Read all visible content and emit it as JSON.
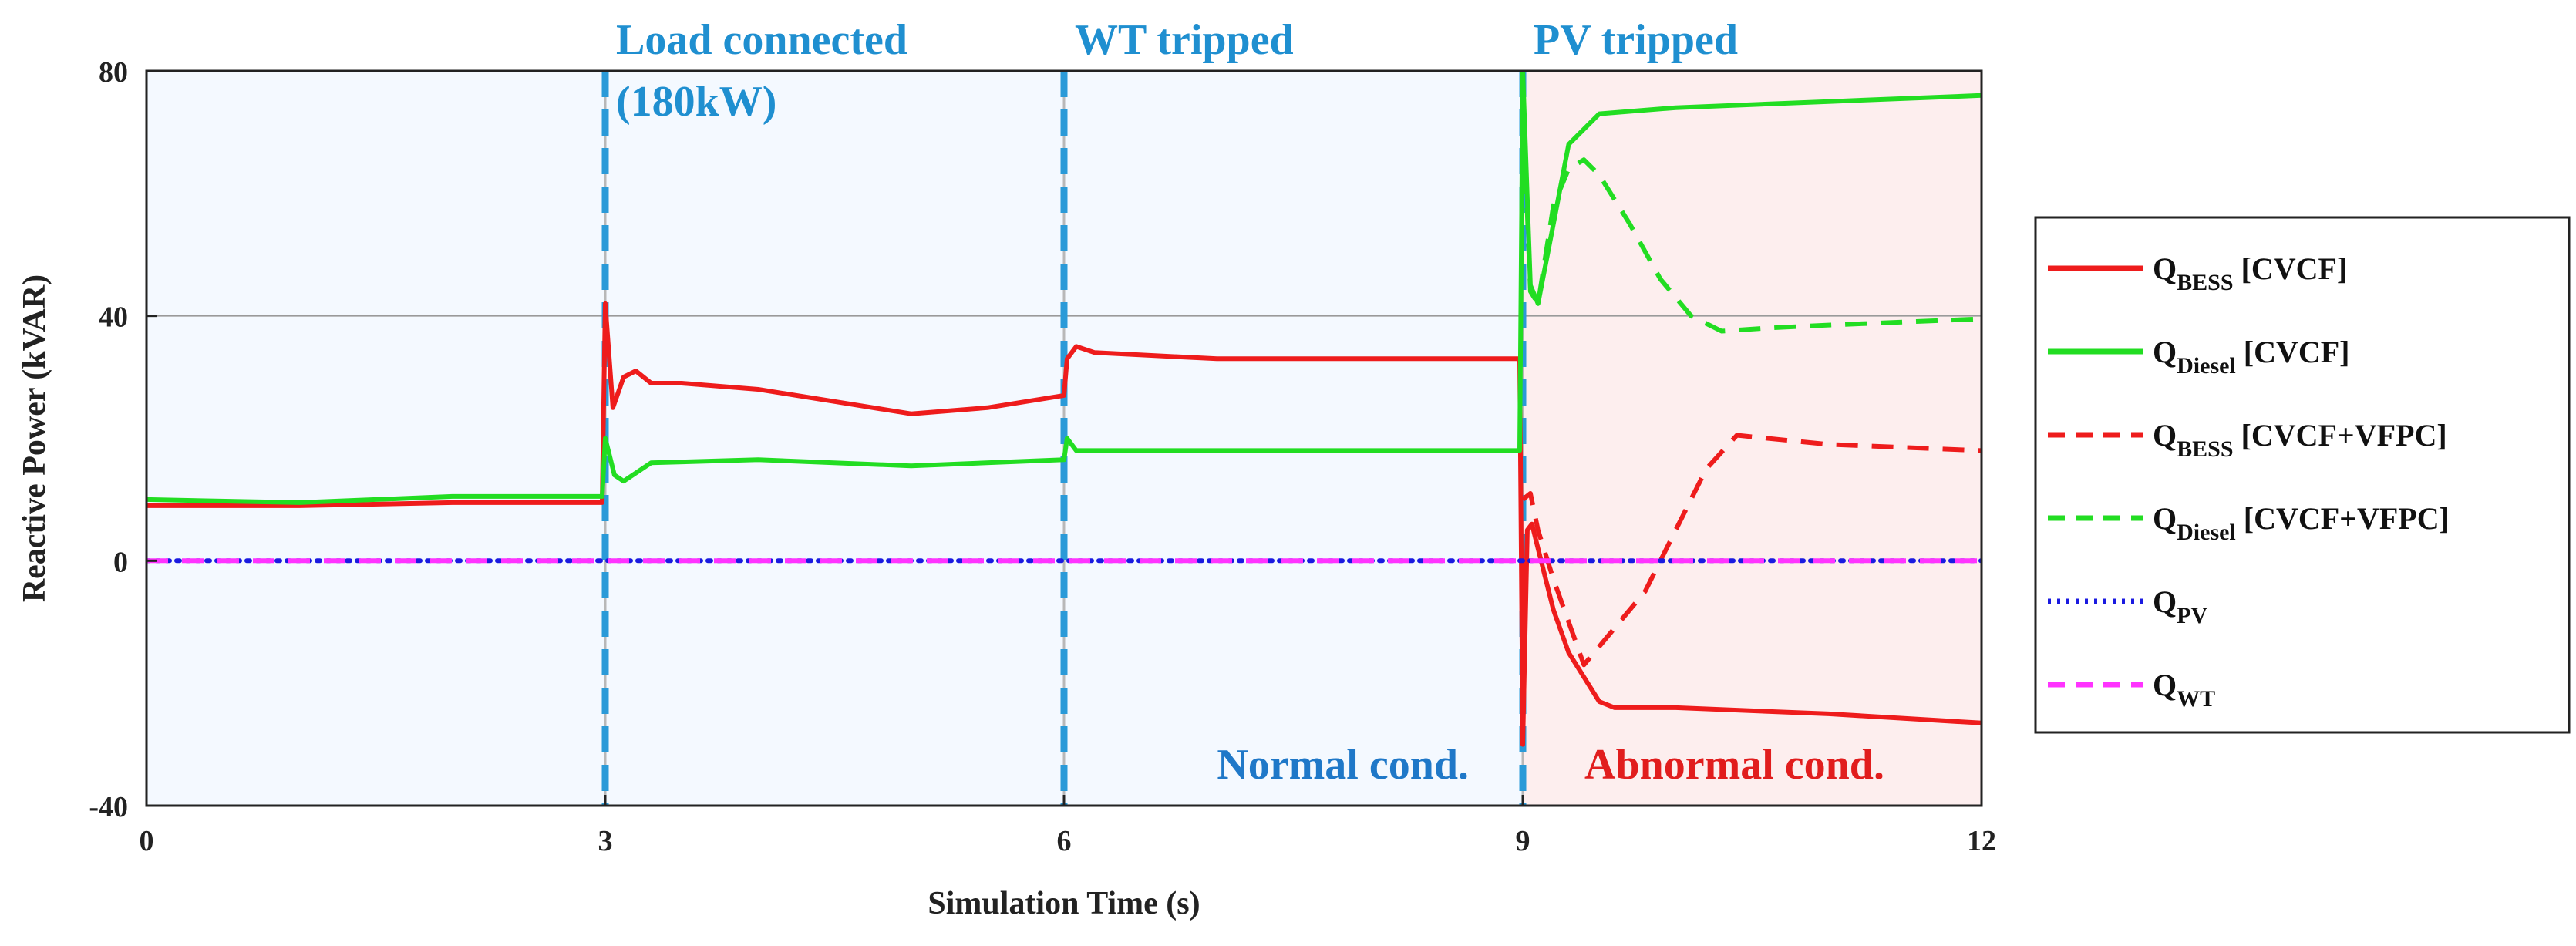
{
  "chart_data": {
    "type": "line",
    "title": "",
    "xlabel": "Simulation Time (s)",
    "ylabel": "Reactive Power (kVAR)",
    "xlim": [
      0,
      12
    ],
    "ylim": [
      -40,
      80
    ],
    "xticks": [
      0,
      3,
      6,
      9,
      12
    ],
    "yticks": [
      -40,
      0,
      40,
      80
    ],
    "gridlines_y": [
      40
    ],
    "events": [
      {
        "x": 3,
        "label_lines": [
          "Load connected",
          "(180kW)"
        ]
      },
      {
        "x": 6,
        "label_lines": [
          "WT tripped"
        ]
      },
      {
        "x": 9,
        "label_lines": [
          "PV tripped"
        ]
      }
    ],
    "regions": [
      {
        "x0": 0,
        "x1": 9,
        "label": "Normal cond.",
        "fill": "#f4f9ff",
        "text_color": "#1f78c8"
      },
      {
        "x0": 9,
        "x1": 12,
        "label": "Abnormal cond.",
        "fill": "#fdeeee",
        "text_color": "#e11d1d"
      }
    ],
    "series": [
      {
        "id": "qbess-cvcf",
        "name": "Q_BESS [CVCF]",
        "legend": {
          "main": "Q",
          "sub": "BESS",
          "tail": " [CVCF]"
        },
        "color": "#ee1c1c",
        "dash": "solid",
        "points": [
          [
            0,
            9
          ],
          [
            1,
            9
          ],
          [
            2,
            9.5
          ],
          [
            2.98,
            9.5
          ],
          [
            3,
            42
          ],
          [
            3.05,
            25
          ],
          [
            3.12,
            30
          ],
          [
            3.2,
            31
          ],
          [
            3.3,
            29
          ],
          [
            3.5,
            29
          ],
          [
            4,
            28
          ],
          [
            4.5,
            26
          ],
          [
            5,
            24
          ],
          [
            5.5,
            25
          ],
          [
            6,
            27
          ],
          [
            6.02,
            33
          ],
          [
            6.08,
            35
          ],
          [
            6.2,
            34
          ],
          [
            7,
            33
          ],
          [
            8,
            33
          ],
          [
            8.98,
            33
          ],
          [
            9,
            -30
          ],
          [
            9.03,
            5
          ],
          [
            9.06,
            6
          ],
          [
            9.1,
            2
          ],
          [
            9.2,
            -8
          ],
          [
            9.3,
            -15
          ],
          [
            9.4,
            -19
          ],
          [
            9.5,
            -23
          ],
          [
            9.6,
            -24
          ],
          [
            10,
            -24
          ],
          [
            11,
            -25
          ],
          [
            12,
            -26.5
          ]
        ]
      },
      {
        "id": "qdiesel-cvcf",
        "name": "Q_Diesel [CVCF]",
        "legend": {
          "main": "Q",
          "sub": "Diesel",
          "tail": " [CVCF]"
        },
        "color": "#22dd22",
        "dash": "solid",
        "points": [
          [
            0,
            10
          ],
          [
            1,
            9.5
          ],
          [
            2,
            10.5
          ],
          [
            2.98,
            10.5
          ],
          [
            3,
            20
          ],
          [
            3.06,
            14
          ],
          [
            3.12,
            13
          ],
          [
            3.3,
            16
          ],
          [
            4,
            16.5
          ],
          [
            5,
            15.5
          ],
          [
            6,
            16.5
          ],
          [
            6.02,
            20
          ],
          [
            6.08,
            18
          ],
          [
            7,
            18
          ],
          [
            8,
            18
          ],
          [
            8.98,
            18
          ],
          [
            9,
            80
          ],
          [
            9.05,
            45
          ],
          [
            9.1,
            42
          ],
          [
            9.2,
            55
          ],
          [
            9.3,
            68
          ],
          [
            9.5,
            73
          ],
          [
            10,
            74
          ],
          [
            11,
            75
          ],
          [
            12,
            76
          ]
        ]
      },
      {
        "id": "qbess-vfpc",
        "name": "Q_BESS [CVCF+VFPC]",
        "legend": {
          "main": "Q",
          "sub": "BESS",
          "tail": " [CVCF+VFPC]"
        },
        "color": "#ee1c1c",
        "dash": "dashed",
        "points": [
          [
            9,
            10
          ],
          [
            9.05,
            11
          ],
          [
            9.1,
            5
          ],
          [
            9.2,
            -3
          ],
          [
            9.3,
            -10
          ],
          [
            9.4,
            -17
          ],
          [
            9.5,
            -14
          ],
          [
            9.8,
            -5
          ],
          [
            10,
            5
          ],
          [
            10.2,
            15
          ],
          [
            10.4,
            20.5
          ],
          [
            10.6,
            20
          ],
          [
            11,
            19
          ],
          [
            11.5,
            18.5
          ],
          [
            12,
            18
          ]
        ]
      },
      {
        "id": "qdiesel-vfpc",
        "name": "Q_Diesel [CVCF+VFPC]",
        "legend": {
          "main": "Q",
          "sub": "Diesel",
          "tail": " [CVCF+VFPC]"
        },
        "color": "#22dd22",
        "dash": "dashed",
        "points": [
          [
            9,
            75
          ],
          [
            9.05,
            44
          ],
          [
            9.1,
            42
          ],
          [
            9.2,
            58
          ],
          [
            9.3,
            64
          ],
          [
            9.4,
            65.5
          ],
          [
            9.5,
            63
          ],
          [
            9.7,
            55
          ],
          [
            9.9,
            46
          ],
          [
            10.1,
            40
          ],
          [
            10.3,
            37.5
          ],
          [
            10.6,
            38
          ],
          [
            11,
            38.5
          ],
          [
            11.5,
            39
          ],
          [
            12,
            39.5
          ]
        ]
      },
      {
        "id": "qpv",
        "name": "Q_PV",
        "legend": {
          "main": "Q",
          "sub": "PV",
          "tail": ""
        },
        "color": "#1a1ae0",
        "dash": "dotted",
        "points": [
          [
            0,
            0
          ],
          [
            12,
            0
          ]
        ]
      },
      {
        "id": "qwt",
        "name": "Q_WT",
        "legend": {
          "main": "Q",
          "sub": "WT",
          "tail": ""
        },
        "color": "#ff33ff",
        "dash": "dashed",
        "points": [
          [
            0,
            0
          ],
          [
            12,
            0
          ]
        ]
      }
    ]
  }
}
